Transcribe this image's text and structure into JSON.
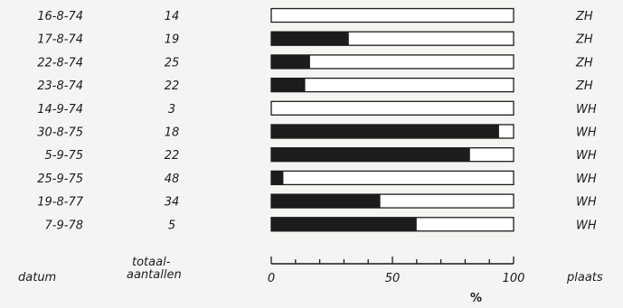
{
  "chart_data": {
    "type": "bar",
    "orientation": "horizontal",
    "stacked_percent": true,
    "colors": {
      "filled": "#1c1c1c",
      "empty": "#ffffff",
      "outline": "#1c1c1c"
    },
    "column_headers": {
      "date": "datum",
      "totals_line1": "totaal-",
      "totals_line2": "aantallen",
      "place": "plaats"
    },
    "rows": [
      {
        "date": "16-8-74",
        "total": "14",
        "percent": 0,
        "place": "ZH"
      },
      {
        "date": "17-8-74",
        "total": "19",
        "percent": 32,
        "place": "ZH"
      },
      {
        "date": "22-8-74",
        "total": "25",
        "percent": 16,
        "place": "ZH"
      },
      {
        "date": "23-8-74",
        "total": "22",
        "percent": 14,
        "place": "ZH"
      },
      {
        "date": "14-9-74",
        "total": "3",
        "percent": 0,
        "place": "WH"
      },
      {
        "date": "30-8-75",
        "total": "18",
        "percent": 94,
        "place": "WH"
      },
      {
        "date": "5-9-75",
        "total": "22",
        "percent": 82,
        "place": "WH"
      },
      {
        "date": "25-9-75",
        "total": "48",
        "percent": 5,
        "place": "WH"
      },
      {
        "date": "19-8-77",
        "total": "34",
        "percent": 45,
        "place": "WH"
      },
      {
        "date": "7-9-78",
        "total": "5",
        "percent": 60,
        "place": "WH"
      }
    ],
    "xaxis": {
      "range": [
        0,
        100
      ],
      "ticks": [
        "0",
        "50",
        "100"
      ],
      "minor_tick_step": 10,
      "label": "%"
    }
  }
}
